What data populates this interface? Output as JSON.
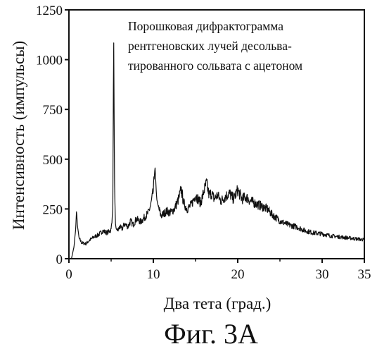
{
  "caption": "Фиг. 3А",
  "chart_data": {
    "type": "line",
    "title": "",
    "annotation": [
      "Порошковая дифрактограмма",
      "рентгеновских лучей десольва-",
      "тированного сольвата с ацетоном"
    ],
    "xlabel": "Два тета (град.)",
    "ylabel": "Интенсивность (импульсы)",
    "xlim": [
      0,
      35
    ],
    "ylim": [
      0,
      1250
    ],
    "xticks": [
      0,
      10,
      20,
      30,
      35
    ],
    "yticks": [
      0,
      250,
      500,
      750,
      1000,
      1250
    ],
    "grid": false,
    "legend": "none",
    "series": [
      {
        "x": [
          0.3,
          0.6,
          0.8,
          0.9,
          1.0,
          1.2,
          1.5,
          2.0,
          2.5,
          3.0,
          3.5,
          4.0,
          4.5,
          5.0,
          5.2,
          5.3,
          5.4,
          5.5,
          5.6,
          5.8,
          6.0,
          6.3,
          6.6,
          7.0,
          7.3,
          7.6,
          8.0,
          8.5,
          9.0,
          9.4,
          9.7,
          10.0,
          10.2,
          10.4,
          10.6,
          10.9,
          11.2,
          11.6,
          12.0,
          12.5,
          13.0,
          13.3,
          13.6,
          14.0,
          14.5,
          15.0,
          15.3,
          15.6,
          16.0,
          16.3,
          16.6,
          16.9,
          17.2,
          17.6,
          18.0,
          18.5,
          19.0,
          19.5,
          20.0,
          20.5,
          21.0,
          21.5,
          22.0,
          22.5,
          23.0,
          23.5,
          24.0,
          25.0,
          26.0,
          27.0,
          28.0,
          29.0,
          30.0,
          31.0,
          32.0,
          33.0,
          34.0,
          35.0
        ],
        "y": [
          0,
          60,
          150,
          240,
          170,
          105,
          80,
          75,
          95,
          110,
          120,
          140,
          130,
          145,
          250,
          1120,
          400,
          180,
          150,
          140,
          160,
          150,
          175,
          160,
          190,
          170,
          200,
          185,
          210,
          230,
          270,
          340,
          460,
          300,
          260,
          215,
          225,
          240,
          230,
          250,
          300,
          350,
          280,
          250,
          270,
          320,
          300,
          280,
          340,
          380,
          320,
          330,
          300,
          320,
          290,
          310,
          330,
          300,
          345,
          300,
          310,
          290,
          280,
          270,
          260,
          250,
          225,
          190,
          170,
          160,
          140,
          130,
          125,
          115,
          110,
          105,
          100,
          95
        ]
      }
    ]
  }
}
